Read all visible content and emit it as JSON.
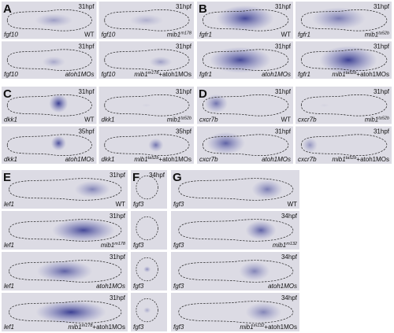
{
  "panels": [
    {
      "letter": "A",
      "tiles": [
        {
          "gene": "fgf10",
          "stage": "31hpf",
          "genotype": {
            "main": "WT"
          }
        },
        {
          "gene": "fgf10",
          "stage": "31hpf",
          "genotype": {
            "main": "mib1",
            "allele": "m178"
          }
        },
        {
          "gene": "fgf10",
          "stage": "31hpf",
          "genotype": {
            "main": "atoh1MOs"
          }
        },
        {
          "gene": "fgf10",
          "stage": "31hpf",
          "genotype": {
            "main": "mib1",
            "allele": "m178",
            "suffix": "+atoh1MOs"
          }
        }
      ]
    },
    {
      "letter": "B",
      "tiles": [
        {
          "gene": "fgfr1",
          "stage": "31hpf",
          "genotype": {
            "main": "WT"
          }
        },
        {
          "gene": "fgfr1",
          "stage": "31hpf",
          "genotype": {
            "main": "mib1",
            "allele": "ta52b"
          }
        },
        {
          "gene": "fgfr1",
          "stage": "31hpf",
          "genotype": {
            "main": "atoh1MOs"
          }
        },
        {
          "gene": "fgfr1",
          "stage": "31hpf",
          "genotype": {
            "main": "mib1",
            "allele": "ta52b",
            "suffix": "+atoh1MOs"
          }
        }
      ]
    },
    {
      "letter": "C",
      "tiles": [
        {
          "gene": "dkk1",
          "stage": "31hpf",
          "genotype": {
            "main": "WT"
          }
        },
        {
          "gene": "dkk1",
          "stage": "31hpf",
          "genotype": {
            "main": "mib1",
            "allele": "ta52b"
          }
        },
        {
          "gene": "dkk1",
          "stage": "35hpf",
          "genotype": {
            "main": "atoh1MOs"
          }
        },
        {
          "gene": "dkk1",
          "stage": "35hpf",
          "genotype": {
            "main": "mib1",
            "allele": "ta52b",
            "suffix": "+atoh1MOs"
          }
        }
      ]
    },
    {
      "letter": "D",
      "tiles": [
        {
          "gene": "cxcr7b",
          "stage": "31hpf",
          "genotype": {
            "main": "WT"
          }
        },
        {
          "gene": "cxcr7b",
          "stage": "31hpf",
          "genotype": {
            "main": "mib1",
            "allele": "ta52b"
          }
        },
        {
          "gene": "cxcr7b",
          "stage": "31hpf",
          "genotype": {
            "main": "atoh1MOs"
          }
        },
        {
          "gene": "cxcr7b",
          "stage": "31hpf",
          "genotype": {
            "main": "mib1",
            "allele": "ta52b",
            "suffix": "+atoh1MOs"
          }
        }
      ]
    },
    {
      "letter": "E",
      "tiles": [
        {
          "gene": "lef1",
          "stage": "31hpf",
          "genotype": {
            "main": "WT"
          }
        },
        {
          "gene": "lef1",
          "stage": "31hpf",
          "genotype": {
            "main": "mib1",
            "allele": "m178"
          }
        },
        {
          "gene": "lef1",
          "stage": "31hpf",
          "genotype": {
            "main": "atoh1MOs"
          }
        },
        {
          "gene": "lef1",
          "stage": "31hpf",
          "genotype": {
            "main": "mib1",
            "allele": "m178",
            "suffix": "+atoh1MOs"
          }
        }
      ]
    },
    {
      "letter": "F",
      "tiles": [
        {
          "gene": "fgf3",
          "stage": "34hpf"
        },
        {
          "gene": "fgf3"
        },
        {
          "gene": "fgf3"
        },
        {
          "gene": "fgf3"
        }
      ]
    },
    {
      "letter": "G",
      "tiles": [
        {
          "gene": "fgf3",
          "genotype": {
            "main": "WT"
          }
        },
        {
          "gene": "fgf3",
          "stage": "34hpf",
          "genotype": {
            "main": "mib1",
            "allele": "m132"
          }
        },
        {
          "gene": "fgf3",
          "stage": "34hpf",
          "genotype": {
            "main": "atoh1MOs"
          }
        },
        {
          "gene": "fgf3",
          "stage": "34hpf",
          "genotype": {
            "main": "mib1",
            "allele": "m132",
            "suffix": "+atoh1MOs"
          }
        }
      ]
    }
  ]
}
